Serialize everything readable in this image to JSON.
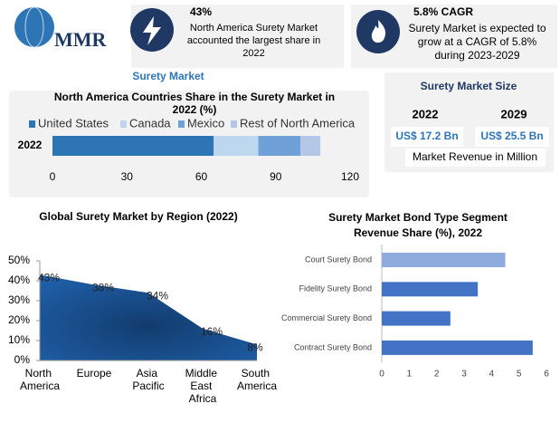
{
  "header": {
    "logo": "MMR",
    "stats": [
      {
        "value": "43%",
        "text": "North America Surety Market accounted the largest share in 2022"
      },
      {
        "value": "5.8% CAGR",
        "text": "Surety Market is expected to grow at a CAGR of 5.8% during 2023-2029"
      }
    ]
  },
  "section_label": "Surety Market",
  "market_size": {
    "title": "Surety Market Size",
    "columns": [
      {
        "year": "2022",
        "value": "US$ 17.2 Bn"
      },
      {
        "year": "2029",
        "value": "US$ 25.5 Bn"
      }
    ],
    "note": "Market Revenue in Million"
  },
  "chart_data": [
    {
      "type": "stacked-bar",
      "orientation": "horizontal",
      "title": "North America Countries Share in the Surety Market in 2022 (%)",
      "categories": [
        "2022"
      ],
      "series": [
        {
          "name": "United States",
          "color": "#2e75b6",
          "values": [
            65
          ]
        },
        {
          "name": "Canada",
          "color": "#bdd7ee",
          "values": [
            18
          ]
        },
        {
          "name": "Mexico",
          "color": "#6fa0d8",
          "values": [
            17
          ]
        },
        {
          "name": "Rest of North America",
          "color": "#b4c7e7",
          "values": [
            8
          ]
        }
      ],
      "xlim": [
        0,
        120
      ],
      "xticks": [
        0,
        30,
        60,
        90,
        120
      ],
      "legend": "top"
    },
    {
      "type": "area",
      "title": "Global Surety Market by Region (2022)",
      "categories": [
        "North America",
        "Europe",
        "Asia Pacific",
        "Middle East Africa",
        "South America"
      ],
      "values": [
        43,
        38,
        34,
        16,
        8
      ],
      "value_labels": [
        "43%",
        "38%",
        "34%",
        "16%",
        "8%"
      ],
      "color": "#1f5fa8",
      "ylim": [
        0,
        50
      ],
      "yticks": [
        {
          "value": 0,
          "label": "0%"
        },
        {
          "value": 10,
          "label": "10%"
        },
        {
          "value": 20,
          "label": "20%"
        },
        {
          "value": 30,
          "label": "30%"
        },
        {
          "value": 40,
          "label": "40%"
        },
        {
          "value": 50,
          "label": "50%"
        }
      ]
    },
    {
      "type": "bar",
      "orientation": "horizontal",
      "title": "Surety Market Bond Type Segment Revenue Share (%), 2022",
      "categories": [
        "Court Surety Bond",
        "Fidelity Surety Bond",
        "Commercial Surety Bond",
        "Contract Surety Bond"
      ],
      "values": [
        4.5,
        3.5,
        2.5,
        5.5
      ],
      "colors": [
        "#8faadc",
        "#4472c4",
        "#4472c4",
        "#4472c4"
      ],
      "xlim": [
        0,
        6
      ],
      "xticks": [
        0,
        1,
        2,
        3,
        4,
        5,
        6
      ]
    }
  ]
}
